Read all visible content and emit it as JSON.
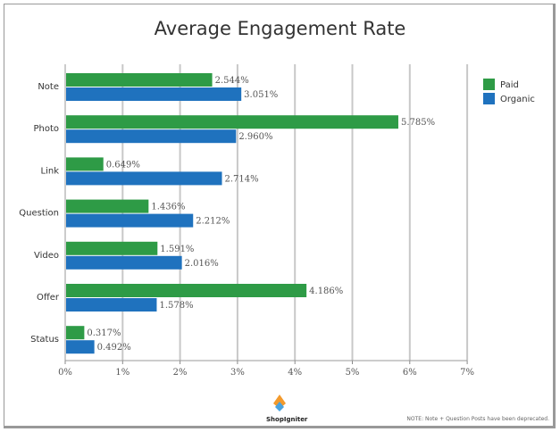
{
  "chart_data": {
    "type": "bar",
    "orientation": "horizontal",
    "title": "Average Engagement Rate",
    "categories": [
      "Note",
      "Photo",
      "Link",
      "Question",
      "Video",
      "Offer",
      "Status"
    ],
    "series": [
      {
        "name": "Paid",
        "color": "#2e9b46",
        "values": [
          2.544,
          5.785,
          0.649,
          1.436,
          1.591,
          4.186,
          0.317
        ],
        "labels": [
          "2.544%",
          "5.785%",
          "0.649%",
          "1.436%",
          "1.591%",
          "4.186%",
          "0.317%"
        ]
      },
      {
        "name": "Organic",
        "color": "#1f72be",
        "values": [
          3.051,
          2.96,
          2.714,
          2.212,
          2.016,
          1.578,
          0.492
        ],
        "labels": [
          "3.051%",
          "2.960%",
          "2.714%",
          "2.212%",
          "2.016%",
          "1.578%",
          "0.492%"
        ]
      }
    ],
    "xlim": [
      0,
      7
    ],
    "xticks": [
      "0%",
      "1%",
      "2%",
      "3%",
      "4%",
      "5%",
      "6%",
      "7%"
    ],
    "grid": "vertical",
    "legend": "top-right"
  },
  "footer": {
    "brand": "ShopIgniter",
    "note": "NOTE: Note + Question Posts have been deprecated."
  }
}
